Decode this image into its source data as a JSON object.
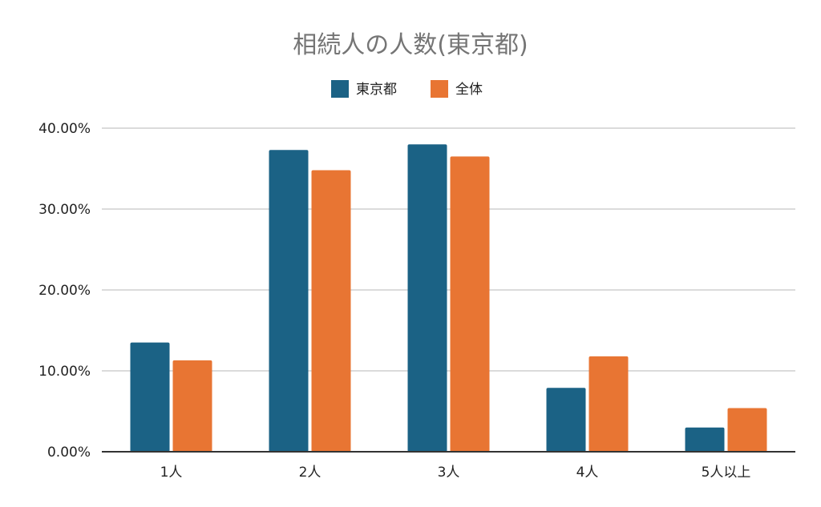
{
  "chart_data": {
    "type": "bar",
    "title": "相続人の人数(東京都)",
    "xlabel": "",
    "ylabel": "",
    "categories": [
      "1人",
      "2人",
      "3人",
      "4人",
      "5人以上"
    ],
    "series": [
      {
        "name": "東京都",
        "color": "#1b6285",
        "values": [
          13.5,
          37.3,
          38.0,
          7.9,
          3.0
        ]
      },
      {
        "name": "全体",
        "color": "#e87533",
        "values": [
          11.3,
          34.8,
          36.5,
          11.8,
          5.4
        ]
      }
    ],
    "ylim": [
      0,
      40
    ],
    "yticks": [
      0,
      10,
      20,
      30,
      40
    ],
    "ytick_labels": [
      "0.00%",
      "10.00%",
      "20.00%",
      "30.00%",
      "40.00%"
    ],
    "grid": true,
    "legend_position": "top-center"
  }
}
